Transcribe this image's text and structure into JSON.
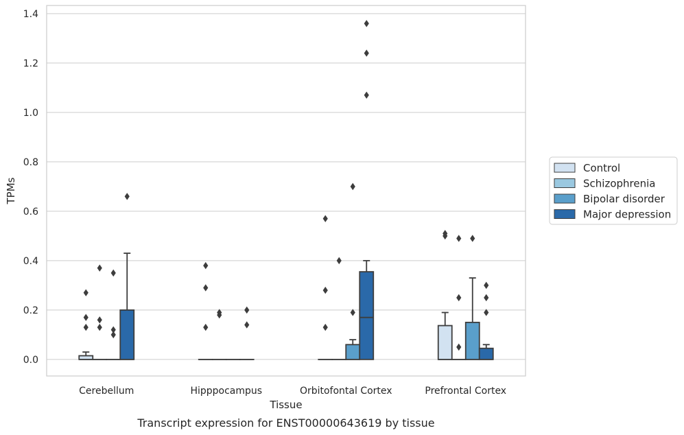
{
  "caption": "Transcript expression for ENST00000643619 by tissue",
  "chart_data": {
    "type": "box",
    "xlabel": "Tissue",
    "ylabel": "TPMs",
    "ylim": [
      -0.067,
      1.433
    ],
    "yticks": [
      "0.0",
      "0.2",
      "0.4",
      "0.6",
      "0.8",
      "1.0",
      "1.2",
      "1.4"
    ],
    "grid": true,
    "legend_placement": "right",
    "categories": [
      "Cerebellum",
      "Hipppocampus",
      "Orbitofontal Cortex",
      "Prefrontal Cortex"
    ],
    "series": [
      {
        "name": "Control",
        "color": "#d2e2f1",
        "boxes": [
          {
            "q1": 0.0,
            "median": 0.0,
            "q3": 0.015,
            "whisker_low": 0.0,
            "whisker_high": 0.03,
            "outliers": [
              0.13,
              0.17,
              0.27
            ]
          },
          {
            "q1": 0.0,
            "median": 0.0,
            "q3": 0.0,
            "whisker_low": 0.0,
            "whisker_high": 0.0,
            "outliers": [
              0.13,
              0.29,
              0.38
            ]
          },
          {
            "q1": 0.0,
            "median": 0.0,
            "q3": 0.0,
            "whisker_low": 0.0,
            "whisker_high": 0.0,
            "outliers": [
              0.13,
              0.28,
              0.57
            ]
          },
          {
            "q1": 0.0,
            "median": 0.0,
            "q3": 0.137,
            "whisker_low": 0.0,
            "whisker_high": 0.19,
            "outliers": [
              0.5,
              0.51
            ]
          }
        ]
      },
      {
        "name": "Schizophrenia",
        "color": "#9ac8e0",
        "boxes": [
          {
            "q1": 0.0,
            "median": 0.0,
            "q3": 0.0,
            "whisker_low": 0.0,
            "whisker_high": 0.0,
            "outliers": [
              0.13,
              0.16,
              0.37
            ]
          },
          {
            "q1": 0.0,
            "median": 0.0,
            "q3": 0.0,
            "whisker_low": 0.0,
            "whisker_high": 0.0,
            "outliers": [
              0.18,
              0.19
            ]
          },
          {
            "q1": 0.0,
            "median": 0.0,
            "q3": 0.0,
            "whisker_low": 0.0,
            "whisker_high": 0.0,
            "outliers": [
              0.4
            ]
          },
          {
            "q1": 0.0,
            "median": 0.0,
            "q3": 0.0,
            "whisker_low": 0.0,
            "whisker_high": 0.0,
            "outliers": [
              0.05,
              0.25,
              0.49
            ]
          }
        ]
      },
      {
        "name": "Bipolar disorder",
        "color": "#5a9fcb",
        "boxes": [
          {
            "q1": 0.0,
            "median": 0.0,
            "q3": 0.0,
            "whisker_low": 0.0,
            "whisker_high": 0.0,
            "outliers": [
              0.1,
              0.12,
              0.35
            ]
          },
          {
            "q1": 0.0,
            "median": 0.0,
            "q3": 0.0,
            "whisker_low": 0.0,
            "whisker_high": 0.0,
            "outliers": []
          },
          {
            "q1": 0.0,
            "median": 0.0,
            "q3": 0.06,
            "whisker_low": 0.0,
            "whisker_high": 0.08,
            "outliers": [
              0.19,
              0.7
            ]
          },
          {
            "q1": 0.0,
            "median": 0.0,
            "q3": 0.15,
            "whisker_low": 0.0,
            "whisker_high": 0.33,
            "outliers": [
              0.49
            ]
          }
        ]
      },
      {
        "name": "Major depression",
        "color": "#2a69a9",
        "boxes": [
          {
            "q1": 0.0,
            "median": 0.0,
            "q3": 0.2,
            "whisker_low": 0.0,
            "whisker_high": 0.43,
            "outliers": [
              0.66
            ]
          },
          {
            "q1": 0.0,
            "median": 0.0,
            "q3": 0.0,
            "whisker_low": 0.0,
            "whisker_high": 0.0,
            "outliers": [
              0.14,
              0.2
            ]
          },
          {
            "q1": 0.0,
            "median": 0.17,
            "q3": 0.355,
            "whisker_low": 0.0,
            "whisker_high": 0.4,
            "outliers": [
              1.07,
              1.24,
              1.36
            ]
          },
          {
            "q1": 0.0,
            "median": 0.0,
            "q3": 0.045,
            "whisker_low": 0.0,
            "whisker_high": 0.06,
            "outliers": [
              0.19,
              0.25,
              0.3
            ]
          }
        ]
      }
    ]
  }
}
